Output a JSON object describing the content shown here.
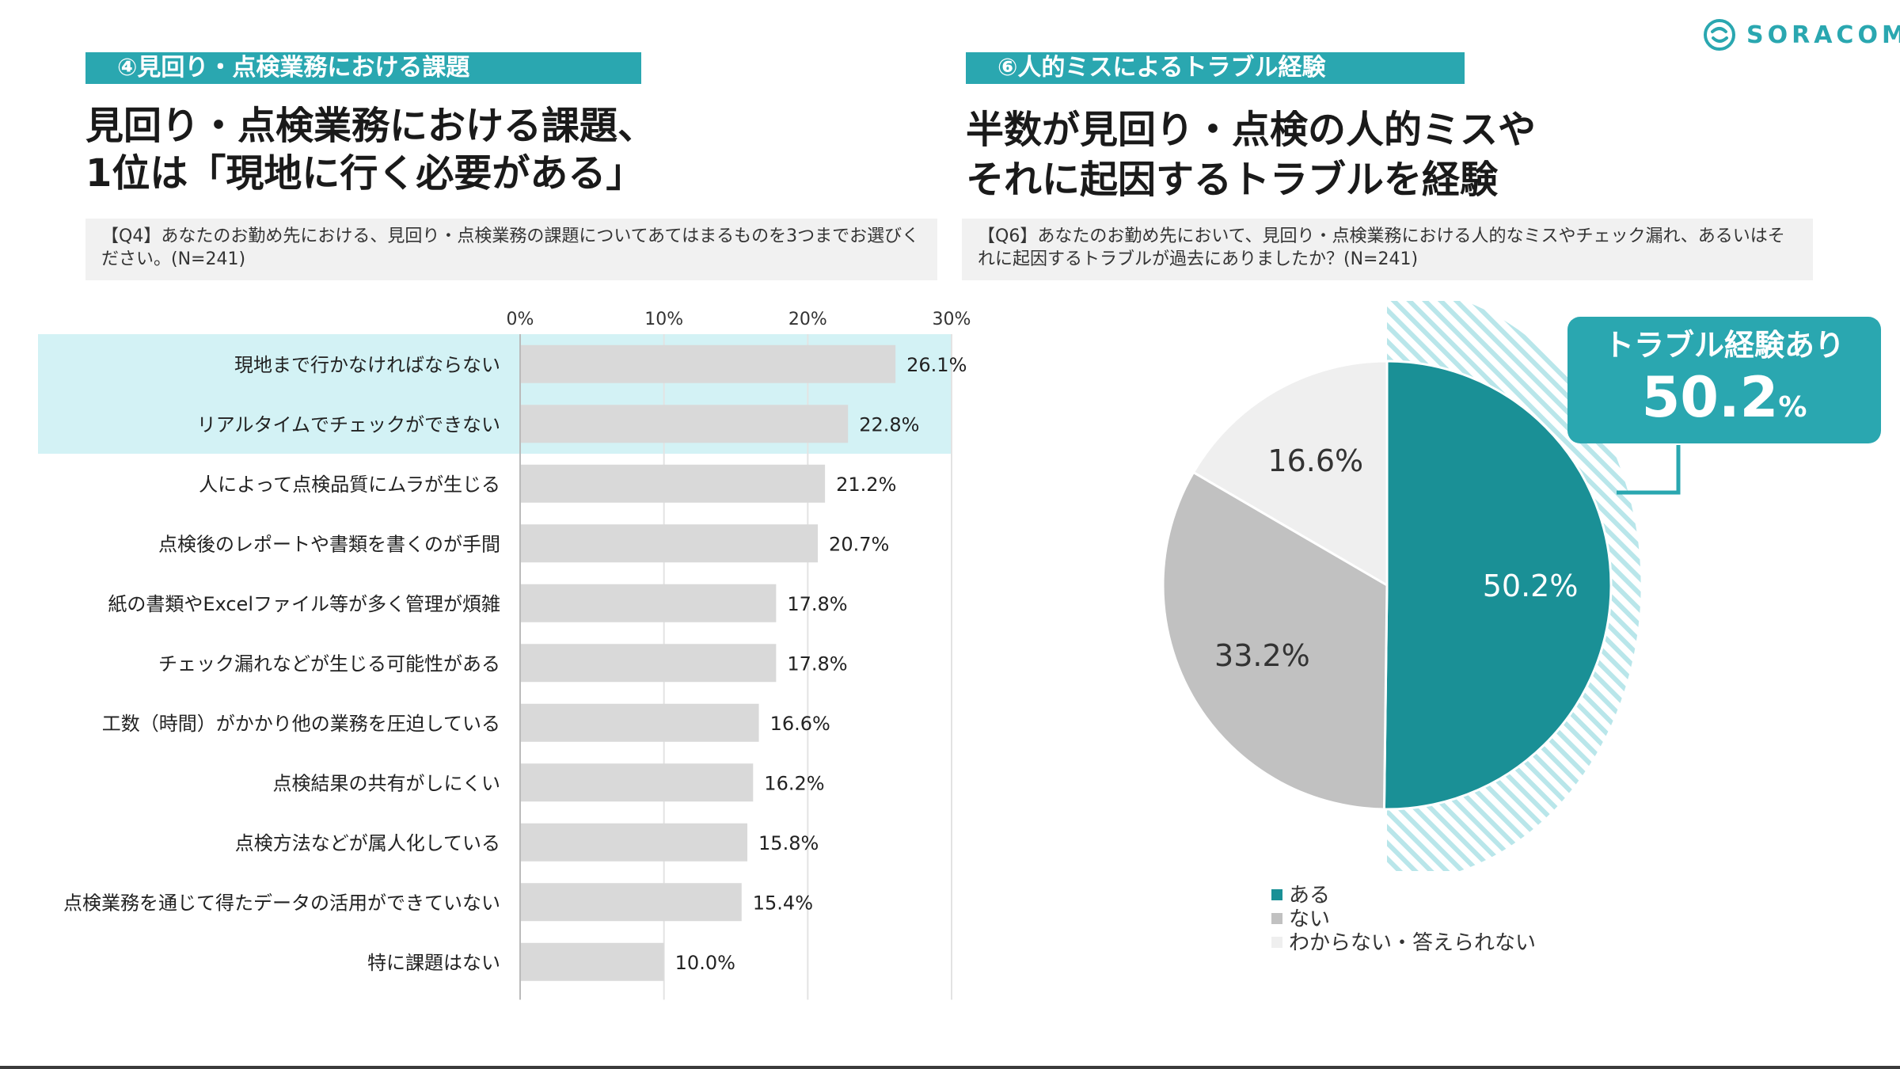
{
  "brand": {
    "name": "SORACOM",
    "icon": "soracom-logo-icon",
    "color": "#2aa7b0"
  },
  "left": {
    "tag": "④見回り・点検業務における課題",
    "headline": [
      "見回り・点検業務における課題、",
      "1位は「現地に行く必要がある」"
    ],
    "question": "【Q4】あなたのお勤め先における、見回り・点検業務の課題についてあてはまるものを3つまでお選びください。(N=241)"
  },
  "right": {
    "tag": "⑥人的ミスによるトラブル経験",
    "headline": [
      "半数が見回り・点検の人的ミスや",
      "それに起因するトラブルを経験"
    ],
    "question": "【Q6】あなたのお勤め先において、見回り・点検業務における人的なミスやチェック漏れ、あるいはそれに起因するトラブルが過去にありましたか？(N=241)",
    "callout": {
      "label": "トラブル経験あり",
      "value": "50.2",
      "unit": "%"
    }
  },
  "chart_data": [
    {
      "type": "bar",
      "orientation": "horizontal",
      "categories": [
        "現地まで行かなければならない",
        "リアルタイムでチェックができない",
        "人によって点検品質にムラが生じる",
        "点検後のレポートや書類を書くのが手間",
        "紙の書類やExcelファイル等が多く管理が煩雑",
        "チェック漏れなどが生じる可能性がある",
        "工数（時間）がかかり他の業務を圧迫している",
        "点検結果の共有がしにくい",
        "点検方法などが属人化している",
        "点検業務を通じて得たデータの活用ができていない",
        "特に課題はない"
      ],
      "values": [
        26.1,
        22.8,
        21.2,
        20.7,
        17.8,
        17.8,
        16.6,
        16.2,
        15.8,
        15.4,
        10.0
      ],
      "value_labels": [
        "26.1%",
        "22.8%",
        "21.2%",
        "20.7%",
        "17.8%",
        "17.8%",
        "16.6%",
        "16.2%",
        "15.8%",
        "15.4%",
        "10.0%"
      ],
      "xlim": [
        0,
        30
      ],
      "xticks": [
        0,
        10,
        20,
        30
      ],
      "xtick_labels": [
        "0%",
        "10%",
        "20%",
        "30%"
      ],
      "highlighted_categories": [
        0,
        1
      ],
      "bar_color": "#d9d9d9",
      "highlight_color": "#d3f2f5"
    },
    {
      "type": "pie",
      "labels": [
        "ある",
        "ない",
        "わからない・答えられない"
      ],
      "values": [
        50.2,
        33.2,
        16.6
      ],
      "value_labels": [
        "50.2%",
        "33.2%",
        "16.6%"
      ],
      "colors": [
        "#1a9096",
        "#c1c1c1",
        "#efefef"
      ],
      "legend_position": "bottom-left",
      "highlight_slice": 0
    }
  ]
}
